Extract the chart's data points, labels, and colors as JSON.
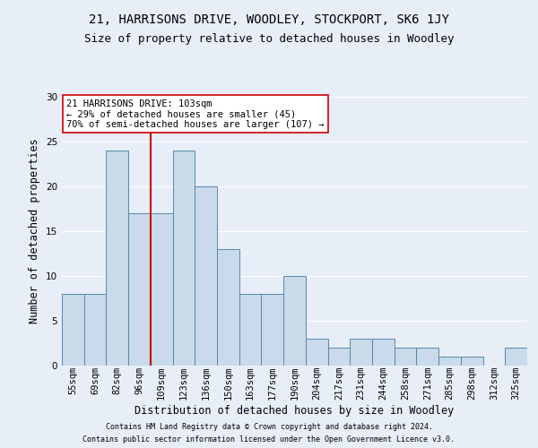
{
  "title1": "21, HARRISONS DRIVE, WOODLEY, STOCKPORT, SK6 1JY",
  "title2": "Size of property relative to detached houses in Woodley",
  "xlabel": "Distribution of detached houses by size in Woodley",
  "ylabel": "Number of detached properties",
  "footer1": "Contains HM Land Registry data © Crown copyright and database right 2024.",
  "footer2": "Contains public sector information licensed under the Open Government Licence v3.0.",
  "categories": [
    "55sqm",
    "69sqm",
    "82sqm",
    "96sqm",
    "109sqm",
    "123sqm",
    "136sqm",
    "150sqm",
    "163sqm",
    "177sqm",
    "190sqm",
    "204sqm",
    "217sqm",
    "231sqm",
    "244sqm",
    "258sqm",
    "271sqm",
    "285sqm",
    "298sqm",
    "312sqm",
    "325sqm"
  ],
  "values": [
    8,
    8,
    24,
    17,
    17,
    24,
    20,
    13,
    8,
    8,
    10,
    3,
    2,
    3,
    3,
    2,
    2,
    1,
    1,
    0,
    2
  ],
  "bar_color": "#c9daea",
  "bar_edge_color": "#5588aa",
  "vline_color": "#cc0000",
  "vline_x": 3.5,
  "annotation_text": "21 HARRISONS DRIVE: 103sqm\n← 29% of detached houses are smaller (45)\n70% of semi-detached houses are larger (107) →",
  "annotation_box_color": "white",
  "annotation_box_edge_color": "#cc0000",
  "ylim": [
    0,
    30
  ],
  "yticks": [
    0,
    5,
    10,
    15,
    20,
    25,
    30
  ],
  "bg_color": "#e8eef8",
  "plot_bg_color": "#e8eef8",
  "grid_color": "white",
  "title1_fontsize": 10,
  "title2_fontsize": 9,
  "xlabel_fontsize": 8.5,
  "ylabel_fontsize": 8.5,
  "tick_fontsize": 7.5,
  "annotation_fontsize": 7.5,
  "footer_fontsize": 6.0
}
